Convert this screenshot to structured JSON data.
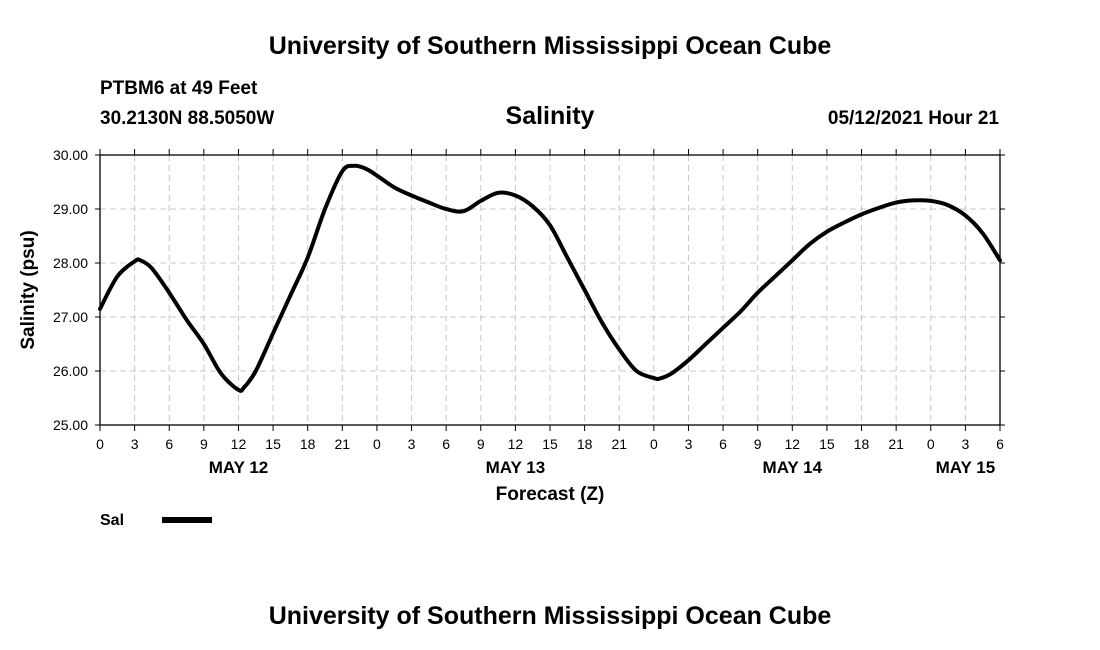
{
  "header": {
    "top_title": "University of Southern Mississippi Ocean Cube",
    "station": "PTBM6 at 49 Feet",
    "coords": "30.2130N  88.5050W",
    "datetime": "05/12/2021 Hour 21"
  },
  "footer": {
    "bottom_title": "University of Southern Mississippi Ocean Cube"
  },
  "chart_data": {
    "type": "line",
    "title": "Salinity",
    "xlabel": "Forecast (Z)",
    "ylabel": "Salinity (psu)",
    "x_unit": "hours since 00Z MAY 12 2021",
    "xlim": [
      0,
      78
    ],
    "ylim": [
      25.0,
      30.0
    ],
    "grid": true,
    "y_ticks": [
      25.0,
      26.0,
      27.0,
      28.0,
      29.0,
      30.0
    ],
    "y_tick_labels": [
      "25.00",
      "26.00",
      "27.00",
      "28.00",
      "29.00",
      "30.00"
    ],
    "x_ticks": [
      0,
      3,
      6,
      9,
      12,
      15,
      18,
      21,
      24,
      27,
      30,
      33,
      36,
      39,
      42,
      45,
      48,
      51,
      54,
      57,
      60,
      63,
      66,
      69,
      72,
      75,
      78
    ],
    "x_tick_labels": [
      "0",
      "3",
      "6",
      "9",
      "12",
      "15",
      "18",
      "21",
      "0",
      "3",
      "6",
      "9",
      "12",
      "15",
      "18",
      "21",
      "0",
      "3",
      "6",
      "9",
      "12",
      "15",
      "18",
      "21",
      "0",
      "3",
      "6"
    ],
    "date_labels": [
      {
        "label": "MAY 12",
        "x": 12
      },
      {
        "label": "MAY 13",
        "x": 36
      },
      {
        "label": "MAY 14",
        "x": 60
      },
      {
        "label": "MAY 15",
        "x": 75
      }
    ],
    "legend": {
      "label": "Sal",
      "position": "bottom-left"
    },
    "series": [
      {
        "name": "Sal",
        "color": "#000000",
        "x": [
          0,
          1.5,
          3,
          3.5,
          4.5,
          6,
          7.5,
          9,
          10.5,
          12,
          12.5,
          13.5,
          15,
          16.5,
          18,
          19.5,
          21,
          22,
          23,
          24,
          25.5,
          27,
          28.5,
          30,
          31.5,
          33,
          34.5,
          36,
          37.5,
          39,
          40.5,
          42,
          43.5,
          45,
          46.5,
          48,
          48.5,
          49.5,
          51,
          52.5,
          54,
          55.5,
          57,
          58.5,
          60,
          61.5,
          63,
          64.5,
          66,
          67.5,
          69,
          70.5,
          72,
          73.5,
          75,
          76.5,
          78
        ],
        "values": [
          27.15,
          27.75,
          28.03,
          28.05,
          27.9,
          27.45,
          26.95,
          26.5,
          25.95,
          25.65,
          25.7,
          26.0,
          26.7,
          27.4,
          28.1,
          29.0,
          29.7,
          29.8,
          29.75,
          29.62,
          29.4,
          29.25,
          29.12,
          29.0,
          28.96,
          29.15,
          29.3,
          29.25,
          29.05,
          28.7,
          28.1,
          27.5,
          26.9,
          26.4,
          26.0,
          25.87,
          25.86,
          25.95,
          26.2,
          26.5,
          26.8,
          27.1,
          27.45,
          27.75,
          28.05,
          28.35,
          28.58,
          28.75,
          28.9,
          29.02,
          29.12,
          29.16,
          29.15,
          29.07,
          28.88,
          28.55,
          28.05
        ]
      }
    ]
  }
}
